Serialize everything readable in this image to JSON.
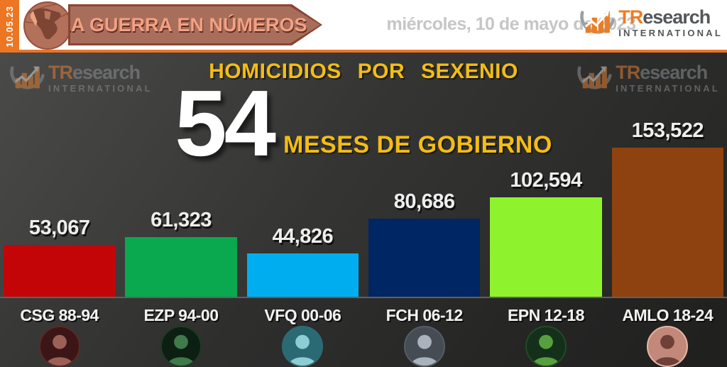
{
  "header": {
    "date_badge": "10.05.23",
    "banner_title": "LA GUERRA EN NÚMEROS",
    "date_line": "miércoles, 10 de mayo de 2023",
    "brand": {
      "prefix": "TR",
      "suffix": "esearch",
      "subtitle": "INTERNATIONAL"
    }
  },
  "chart_data": {
    "type": "bar",
    "title": "HOMICIDIOS POR SEXENIO",
    "highlight_number": "54",
    "highlight_label": "MESES DE GOBIERNO",
    "categories": [
      "CSG 88-94",
      "EZP 94-00",
      "VFQ 00-06",
      "FCH 06-12",
      "EPN 12-18",
      "AMLO 18-24"
    ],
    "values": [
      53067,
      61323,
      44826,
      80686,
      102594,
      153522
    ],
    "value_labels": [
      "53,067",
      "61,323",
      "44,826",
      "80,686",
      "102,594",
      "153,522"
    ],
    "bar_colors": [
      "#c40508",
      "#0aa94f",
      "#00aeef",
      "#002663",
      "#8ef32c",
      "#8e420f"
    ],
    "xlabel": "",
    "ylabel": "",
    "ylim": [
      0,
      160000
    ],
    "grid": false,
    "legend_position": "none",
    "avatars": [
      {
        "bg": "#3c1517",
        "fg": "#9c6057",
        "ring": "#5a2a28"
      },
      {
        "bg": "#0d1f12",
        "fg": "#3f7a4a",
        "ring": "#1d3a24"
      },
      {
        "bg": "#2a6a74",
        "fg": "#8ecdd4",
        "ring": "#2f6a72"
      },
      {
        "bg": "#454c54",
        "fg": "#aab3bc",
        "ring": "#555c64"
      },
      {
        "bg": "#15301a",
        "fg": "#57a03f",
        "ring": "#224a26"
      },
      {
        "bg": "#c2897a",
        "fg": "#6e4038",
        "ring": "#e7b5a2"
      }
    ]
  },
  "colors": {
    "accent_orange": "#ec7623",
    "title_yellow": "#f3bd13",
    "banner_fill": "#a86e5c",
    "banner_border": "#8c4432",
    "banner_text": "#f2a184",
    "chart_bg_top": "#4a4a49",
    "chart_bg_bottom": "#232322",
    "logo_gray": "#54565a",
    "logo_orange": "#ee7c22"
  }
}
